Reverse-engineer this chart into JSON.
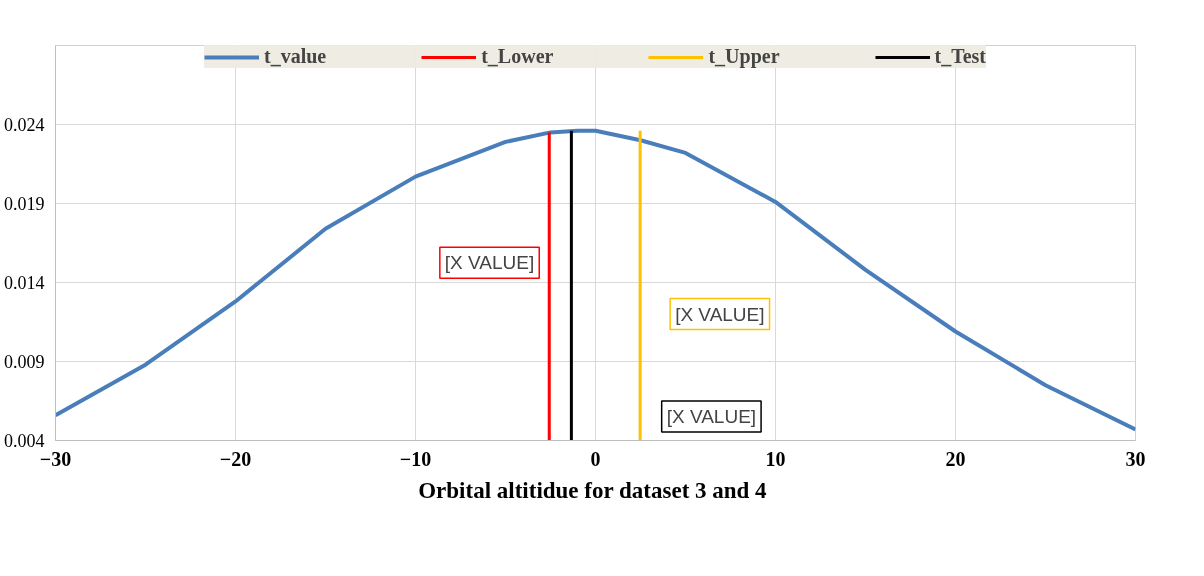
{
  "chart_data": {
    "type": "line",
    "title": "Orbital  altitidue for dataset 3 and 4",
    "xlim": [
      -30,
      30
    ],
    "xticks": [
      -30,
      -20,
      -10,
      0,
      10,
      20,
      30
    ],
    "ylim": [
      0.004,
      0.029
    ],
    "yticks": [
      0.004,
      0.009,
      0.014,
      0.019,
      0.024
    ],
    "grid": true,
    "legend": "top",
    "series": [
      {
        "name": "t_value",
        "color": "#4a7ebb",
        "x": [
          -30,
          -25,
          -20,
          -15,
          -10,
          -5,
          -2.5,
          -1,
          0,
          2.5,
          5,
          10,
          15,
          20,
          25,
          30
        ],
        "values": [
          0.0056,
          0.0088,
          0.0128,
          0.0174,
          0.0207,
          0.0229,
          0.0235,
          0.0236,
          0.0236,
          0.023,
          0.0222,
          0.0191,
          0.0148,
          0.0109,
          0.0075,
          0.0047
        ]
      },
      {
        "name": "t_Lower",
        "color": "#ff0000",
        "x": [
          -2.57,
          -2.57
        ],
        "values": [
          0.004,
          0.0235
        ]
      },
      {
        "name": "t_Upper",
        "color": "#ffc000",
        "x": [
          2.48,
          2.48
        ],
        "values": [
          0.004,
          0.0236
        ]
      },
      {
        "name": "t_Test",
        "color": "#000000",
        "x": [
          -1.34,
          -1.34
        ],
        "values": [
          0.004,
          0.0236
        ]
      }
    ],
    "annotations": [
      "[X VALUE]",
      "[X VALUE]",
      "[X VALUE]"
    ]
  }
}
